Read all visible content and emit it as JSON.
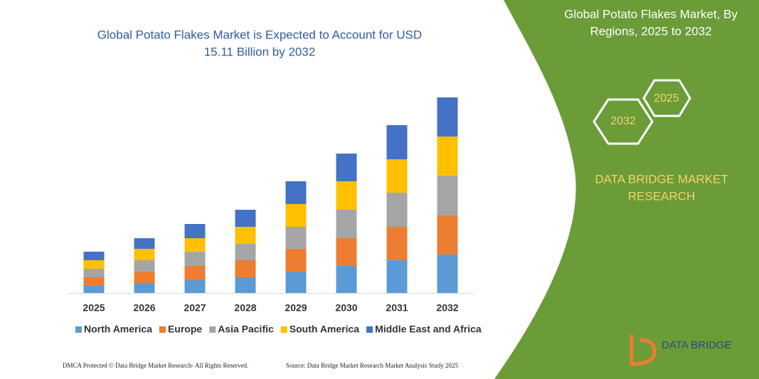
{
  "chart_data": {
    "type": "stacked-bar",
    "title": "Global Potato Flakes Market is Expected to Account for USD",
    "subtitle": "15.11 Billion by 2032",
    "categories": [
      "2025",
      "2026",
      "2027",
      "2028",
      "2029",
      "2030",
      "2031",
      "2032"
    ],
    "series": [
      {
        "name": "North America",
        "color": "#5b9bd5",
        "values": [
          0.55,
          0.77,
          0.99,
          1.21,
          1.65,
          2.09,
          2.53,
          2.97
        ]
      },
      {
        "name": "Europe",
        "color": "#ed7d31",
        "values": [
          0.66,
          0.88,
          1.1,
          1.32,
          1.76,
          2.14,
          2.58,
          3.02
        ]
      },
      {
        "name": "Asia Pacific",
        "color": "#a5a5a5",
        "values": [
          0.66,
          0.88,
          1.1,
          1.26,
          1.7,
          2.2,
          2.64,
          3.08
        ]
      },
      {
        "name": "South America",
        "color": "#ffc000",
        "values": [
          0.66,
          0.88,
          1.04,
          1.32,
          1.76,
          2.2,
          2.58,
          3.02
        ]
      },
      {
        "name": "Middle East and Africa",
        "color": "#4472c4",
        "values": [
          0.66,
          0.82,
          1.1,
          1.32,
          1.76,
          2.14,
          2.64,
          3.02
        ]
      }
    ]
  },
  "panel": {
    "title_line1": "Global Potato Flakes Market, By",
    "title_line2": "Regions, 2025 to 2032",
    "hex_small": "2025",
    "hex_large": "2032",
    "brand_line1": "DATA BRIDGE MARKET",
    "brand_line2": "RESEARCH",
    "logo": "DATA BRIDGE"
  },
  "footer": {
    "left": "DMCA Protected © Data Bridge Market Research-  All Rights Reserved.",
    "right": "Source: Data Bridge Market Research  Market Analysis Study 2025"
  }
}
